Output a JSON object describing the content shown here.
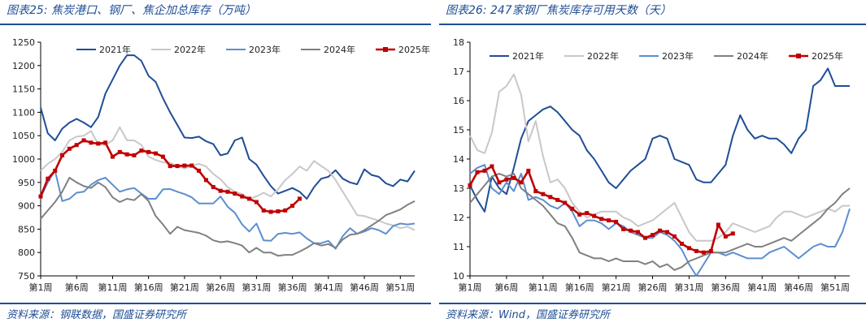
{
  "colors": {
    "accent": "#1f4e96",
    "s2021": "#1f4e96",
    "s2022": "#c8c8c8",
    "s2023": "#5b8fcf",
    "s2024": "#808080",
    "s2025": "#c00000"
  },
  "chart_data": [
    {
      "type": "line",
      "title": "图表25:  焦炭港口、钢厂、焦企加总库存（万吨）",
      "source": "资料来源：钢联数据，国盛证券研究所",
      "ylim": [
        750,
        1250
      ],
      "yticks": [
        750,
        800,
        850,
        900,
        950,
        1000,
        1050,
        1100,
        1150,
        1200,
        1250
      ],
      "xlim": [
        1,
        53
      ],
      "xticks": [
        1,
        6,
        11,
        16,
        21,
        26,
        31,
        36,
        41,
        46,
        51
      ],
      "xtick_labels": [
        "第1周",
        "第6周",
        "第11周",
        "第16周",
        "第21周",
        "第26周",
        "第31周",
        "第36周",
        "第41周",
        "第46周",
        "第51周"
      ],
      "legend": [
        "2021年",
        "2022年",
        "2023年",
        "2024年",
        "2025年"
      ],
      "series": [
        {
          "name": "2021年",
          "color_key": "s2021",
          "values": [
            1110,
            1055,
            1040,
            1065,
            1078,
            1086,
            1078,
            1068,
            1090,
            1140,
            1170,
            1200,
            1222,
            1222,
            1210,
            1178,
            1165,
            1130,
            1100,
            1073,
            1046,
            1045,
            1048,
            1038,
            1032,
            1008,
            1012,
            1040,
            1046,
            1000,
            988,
            964,
            942,
            926,
            932,
            938,
            930,
            915,
            940,
            958,
            962,
            976,
            958,
            950,
            946,
            978,
            966,
            962,
            948,
            942,
            956,
            952,
            975
          ]
        },
        {
          "name": "2022年",
          "color_key": "s2022",
          "values": [
            975,
            990,
            1000,
            1015,
            1040,
            1048,
            1050,
            1060,
            1032,
            1030,
            1040,
            1068,
            1040,
            1040,
            1030,
            1005,
            998,
            993,
            992,
            985,
            980,
            985,
            990,
            984,
            968,
            957,
            940,
            930,
            925,
            915,
            920,
            928,
            920,
            935,
            955,
            968,
            984,
            975,
            996,
            985,
            975,
            955,
            930,
            905,
            880,
            878,
            873,
            868,
            862,
            858,
            852,
            855,
            848
          ]
        },
        {
          "name": "2023年",
          "color_key": "s2023",
          "values": [
            918,
            950,
            975,
            910,
            915,
            928,
            930,
            945,
            955,
            960,
            945,
            930,
            935,
            938,
            926,
            915,
            915,
            935,
            936,
            930,
            925,
            918,
            905,
            905,
            905,
            920,
            898,
            885,
            860,
            845,
            862,
            826,
            825,
            840,
            842,
            840,
            843,
            830,
            820,
            820,
            825,
            808,
            835,
            852,
            840,
            845,
            852,
            848,
            840,
            857,
            862,
            860,
            862
          ]
        },
        {
          "name": "2024年",
          "color_key": "s2024",
          "values": [
            872,
            890,
            908,
            930,
            960,
            950,
            942,
            938,
            950,
            940,
            918,
            908,
            915,
            912,
            925,
            910,
            878,
            860,
            840,
            855,
            848,
            845,
            842,
            836,
            826,
            822,
            824,
            820,
            815,
            800,
            810,
            800,
            800,
            793,
            795,
            795,
            802,
            810,
            820,
            815,
            818,
            810,
            828,
            838,
            840,
            848,
            858,
            868,
            880,
            886,
            892,
            902,
            910
          ]
        },
        {
          "name": "2025年",
          "color_key": "s2025",
          "values": [
            920,
            958,
            975,
            1008,
            1022,
            1030,
            1040,
            1035,
            1033,
            1035,
            1005,
            1015,
            1010,
            1008,
            1018,
            1015,
            1012,
            1005,
            985,
            985,
            986,
            986,
            975,
            955,
            940,
            932,
            930,
            926,
            920,
            915,
            908,
            890,
            887,
            888,
            890,
            900,
            915
          ]
        }
      ]
    },
    {
      "type": "line",
      "title": "图表26:  247家钢厂焦炭库存可用天数（天）",
      "source": "资料来源：Wind，国盛证券研究所",
      "ylim": [
        10,
        18
      ],
      "yticks": [
        10,
        11,
        12,
        13,
        14,
        15,
        16,
        17,
        18
      ],
      "xlim": [
        1,
        53
      ],
      "xticks": [
        1,
        6,
        11,
        16,
        21,
        26,
        31,
        36,
        41,
        46,
        51
      ],
      "xtick_labels": [
        "第1周",
        "第6周",
        "第11周",
        "第16周",
        "第21周",
        "第26周",
        "第31周",
        "第36周",
        "第41周",
        "第46周",
        "第51周"
      ],
      "legend": [
        "2021年",
        "2022年",
        "2023年",
        "2024年",
        "2025年"
      ],
      "series": [
        {
          "name": "2021年",
          "color_key": "s2021",
          "values": [
            13.1,
            12.6,
            12.2,
            13.4,
            13.0,
            12.8,
            13.7,
            14.7,
            15.3,
            15.5,
            15.7,
            15.8,
            15.6,
            15.3,
            15.0,
            14.8,
            14.3,
            14.0,
            13.6,
            13.2,
            13.0,
            13.3,
            13.6,
            13.8,
            14.0,
            14.7,
            14.8,
            14.7,
            14.0,
            13.9,
            13.8,
            13.3,
            13.2,
            13.2,
            13.5,
            13.8,
            14.8,
            15.5,
            15.0,
            14.7,
            14.8,
            14.7,
            14.7,
            14.5,
            14.2,
            14.7,
            15.0,
            16.5,
            16.7,
            17.1,
            16.5,
            16.5,
            16.5
          ]
        },
        {
          "name": "2022年",
          "color_key": "s2022",
          "values": [
            14.8,
            14.3,
            14.2,
            14.9,
            16.3,
            16.5,
            16.9,
            16.2,
            14.6,
            15.3,
            14.1,
            13.2,
            13.3,
            13.0,
            12.5,
            12.2,
            12.0,
            12.1,
            12.2,
            12.2,
            12.2,
            12.0,
            11.9,
            11.7,
            11.8,
            11.9,
            12.1,
            12.3,
            12.5,
            12.0,
            11.5,
            11.2,
            11.2,
            11.2,
            11.3,
            11.5,
            11.8,
            11.7,
            11.6,
            11.5,
            11.6,
            11.7,
            12.0,
            12.2,
            12.2,
            12.1,
            12.0,
            12.1,
            12.2,
            12.3,
            12.2,
            12.4,
            12.4
          ]
        },
        {
          "name": "2023年",
          "color_key": "s2023",
          "values": [
            13.5,
            13.7,
            13.8,
            13.0,
            12.8,
            13.2,
            12.9,
            13.5,
            12.6,
            12.7,
            12.6,
            12.4,
            12.3,
            12.5,
            12.2,
            11.7,
            11.9,
            11.9,
            11.8,
            11.6,
            11.8,
            11.7,
            11.5,
            11.4,
            11.3,
            11.3,
            11.5,
            11.4,
            11.2,
            10.9,
            10.4,
            10.0,
            10.4,
            10.8,
            10.8,
            10.7,
            10.8,
            10.7,
            10.6,
            10.6,
            10.6,
            10.8,
            10.9,
            11.0,
            10.8,
            10.6,
            10.8,
            11.0,
            11.1,
            11.0,
            11.0,
            11.5,
            12.3
          ]
        },
        {
          "name": "2024年",
          "color_key": "s2024",
          "values": [
            12.5,
            12.8,
            13.1,
            13.4,
            13.5,
            13.4,
            13.5,
            13.0,
            12.8,
            12.6,
            12.4,
            12.1,
            11.8,
            11.7,
            11.3,
            10.8,
            10.7,
            10.6,
            10.6,
            10.5,
            10.6,
            10.5,
            10.5,
            10.5,
            10.4,
            10.5,
            10.3,
            10.4,
            10.2,
            10.3,
            10.5,
            10.6,
            10.7,
            10.8,
            10.8,
            10.8,
            10.9,
            11.0,
            11.1,
            11.0,
            11.0,
            11.1,
            11.2,
            11.3,
            11.2,
            11.4,
            11.6,
            11.8,
            12.0,
            12.3,
            12.5,
            12.8,
            13.0
          ]
        },
        {
          "name": "2025年",
          "color_key": "s2025",
          "values": [
            13.1,
            13.55,
            13.6,
            13.75,
            13.2,
            13.3,
            13.35,
            13.2,
            13.6,
            12.9,
            12.8,
            12.7,
            12.6,
            12.5,
            12.3,
            12.1,
            12.15,
            12.05,
            11.95,
            11.9,
            11.85,
            11.6,
            11.55,
            11.5,
            11.3,
            11.4,
            11.55,
            11.5,
            11.35,
            11.1,
            10.95,
            10.85,
            10.8,
            10.85,
            11.75,
            11.35,
            11.45
          ]
        }
      ]
    }
  ]
}
